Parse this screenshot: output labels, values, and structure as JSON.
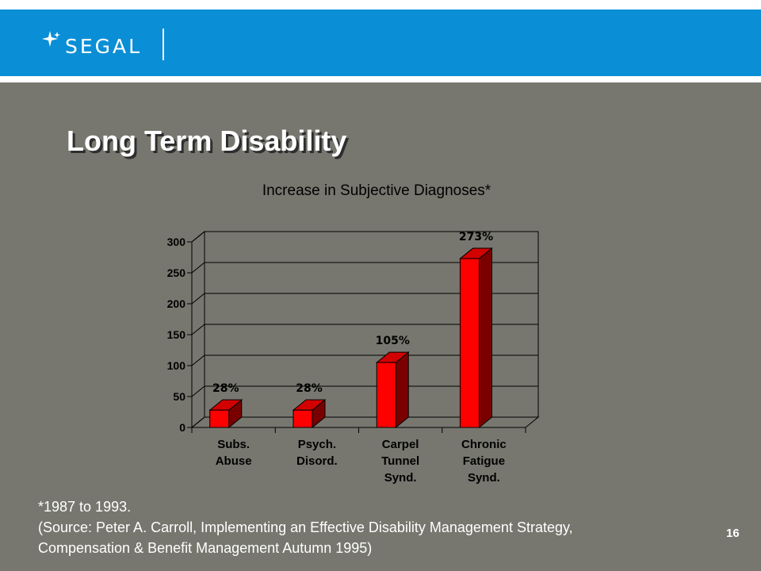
{
  "brand": {
    "name": "SEGAL",
    "icon": "sparkle-star-icon"
  },
  "slide": {
    "title": "Long Term Disability",
    "footnote": {
      "line1": "*1987 to 1993.",
      "line2": "(Source: Peter A. Carroll, Implementing an Effective Disability Management Strategy,",
      "line3": "Compensation & Benefit Management Autumn 1995)"
    },
    "page_number": "16"
  },
  "colors": {
    "header_blue": "#0a8ed6",
    "background_gray": "#77776f",
    "bar_front": "#ff0000",
    "bar_top": "#d20000",
    "bar_side": "#7a0000"
  },
  "chart_data": {
    "type": "bar",
    "title": "Increase in Subjective Diagnoses*",
    "categories": [
      [
        "Subs.",
        "Abuse"
      ],
      [
        "Psych.",
        "Disord."
      ],
      [
        "Carpel",
        "Tunnel",
        "Synd."
      ],
      [
        "Chronic",
        "Fatigue",
        "Synd."
      ]
    ],
    "values": [
      28,
      28,
      105,
      273
    ],
    "data_labels": [
      "28%",
      "28%",
      "105%",
      "273%"
    ],
    "ylim": [
      0,
      300
    ],
    "yticks": [
      0,
      50,
      100,
      150,
      200,
      250,
      300
    ],
    "grid": true,
    "legend": "none",
    "style": "3d-column"
  }
}
